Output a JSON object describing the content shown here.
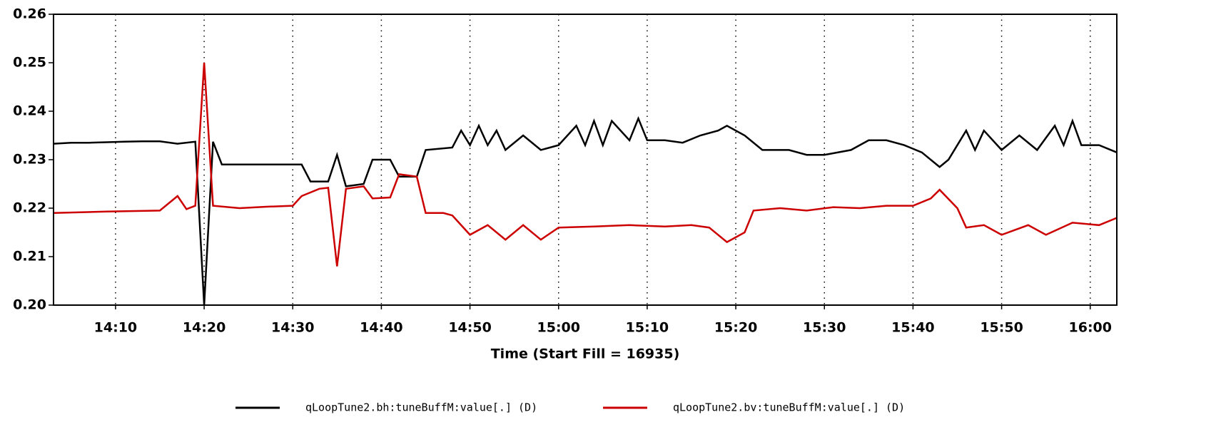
{
  "chart_data": {
    "type": "line",
    "xlabel": "Time (Start Fill = 16935)",
    "xlim": [
      "14:03",
      "16:03"
    ],
    "xticks": [
      "14:10",
      "14:20",
      "14:30",
      "14:40",
      "14:50",
      "15:00",
      "15:10",
      "15:20",
      "15:30",
      "15:40",
      "15:50",
      "16:00"
    ],
    "ylim": [
      0.2,
      0.26
    ],
    "yticks": [
      {
        "value": 0.2,
        "label": "0.20"
      },
      0.21,
      0.22,
      0.23,
      0.24,
      0.25,
      {
        "value": 0.26,
        "label": "0.26"
      }
    ],
    "grid": "x-dotted",
    "legend": "bottom",
    "series": [
      {
        "name": "qLoopTune2.bh:tuneBuffM:value[.] (D)",
        "color": "#000000",
        "x": [
          "14:03",
          "14:05",
          "14:07",
          "14:09",
          "14:11",
          "14:13",
          "14:15",
          "14:17",
          "14:19",
          "14:20",
          "14:21",
          "14:22",
          "14:25",
          "14:28",
          "14:31",
          "14:32",
          "14:34",
          "14:35",
          "14:36",
          "14:38",
          "14:39",
          "14:41",
          "14:42",
          "14:44",
          "14:45",
          "14:48",
          "14:49",
          "14:50",
          "14:51",
          "14:52",
          "14:53",
          "14:54",
          "14:56",
          "14:58",
          "15:00",
          "15:02",
          "15:03",
          "15:04",
          "15:05",
          "15:06",
          "15:08",
          "15:09",
          "15:10",
          "15:12",
          "15:14",
          "15:16",
          "15:18",
          "15:19",
          "15:21",
          "15:23",
          "15:26",
          "15:28",
          "15:30",
          "15:33",
          "15:35",
          "15:37",
          "15:39",
          "15:41",
          "15:43",
          "15:44",
          "15:46",
          "15:47",
          "15:48",
          "15:50",
          "15:52",
          "15:54",
          "15:56",
          "15:57",
          "15:58",
          "15:59",
          "16:01",
          "16:03"
        ],
        "values": [
          0.2333,
          0.2335,
          0.2335,
          0.2336,
          0.2337,
          0.2338,
          0.2338,
          0.2333,
          0.2337,
          0.2,
          0.2337,
          0.229,
          0.229,
          0.229,
          0.229,
          0.2255,
          0.2255,
          0.231,
          0.2245,
          0.225,
          0.23,
          0.23,
          0.2265,
          0.2265,
          0.232,
          0.2325,
          0.236,
          0.233,
          0.237,
          0.233,
          0.236,
          0.232,
          0.235,
          0.232,
          0.233,
          0.237,
          0.233,
          0.238,
          0.233,
          0.238,
          0.234,
          0.2385,
          0.234,
          0.234,
          0.2335,
          0.235,
          0.236,
          0.237,
          0.235,
          0.232,
          0.232,
          0.231,
          0.231,
          0.232,
          0.234,
          0.234,
          0.233,
          0.2315,
          0.2285,
          0.23,
          0.236,
          0.232,
          0.236,
          0.232,
          0.235,
          0.232,
          0.237,
          0.233,
          0.238,
          0.233,
          0.233,
          0.2315
        ]
      },
      {
        "name": "qLoopTune2.bv:tuneBuffM:value[.] (D)",
        "color": "#cc0000",
        "x": [
          "14:03",
          "14:09",
          "14:15",
          "14:17",
          "14:18",
          "14:19",
          "14:20",
          "14:21",
          "14:24",
          "14:27",
          "14:30",
          "14:31",
          "14:33",
          "14:34",
          "14:35",
          "14:36",
          "14:38",
          "14:39",
          "14:41",
          "14:42",
          "14:44",
          "14:45",
          "14:47",
          "14:48",
          "14:50",
          "14:52",
          "14:54",
          "14:56",
          "14:58",
          "15:00",
          "15:04",
          "15:08",
          "15:12",
          "15:15",
          "15:17",
          "15:19",
          "15:21",
          "15:22",
          "15:25",
          "15:28",
          "15:31",
          "15:34",
          "15:37",
          "15:40",
          "15:42",
          "15:43",
          "15:45",
          "15:46",
          "15:48",
          "15:50",
          "15:53",
          "15:55",
          "15:58",
          "16:01",
          "16:03"
        ],
        "values": [
          0.219,
          0.2193,
          0.2195,
          0.2225,
          0.2198,
          0.2205,
          0.25,
          0.2205,
          0.22,
          0.2203,
          0.2205,
          0.2225,
          0.224,
          0.2242,
          0.208,
          0.224,
          0.2245,
          0.222,
          0.2222,
          0.227,
          0.2265,
          0.219,
          0.219,
          0.2185,
          0.2145,
          0.2165,
          0.2135,
          0.2165,
          0.2135,
          0.216,
          0.2162,
          0.2165,
          0.2162,
          0.2165,
          0.216,
          0.213,
          0.215,
          0.2195,
          0.22,
          0.2195,
          0.2202,
          0.22,
          0.2205,
          0.2205,
          0.222,
          0.2238,
          0.22,
          0.216,
          0.2165,
          0.2145,
          0.2165,
          0.2145,
          0.217,
          0.2165,
          0.218
        ]
      }
    ]
  }
}
